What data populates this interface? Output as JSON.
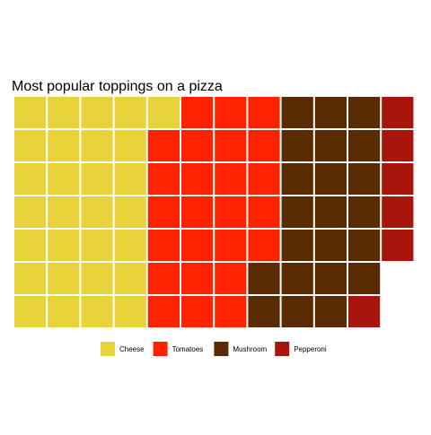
{
  "chart_data": {
    "type": "waffle",
    "title": "Most popular toppings on a pizza",
    "rows": 7,
    "fill_order": "column-major, top-to-bottom",
    "legend_position": "bottom",
    "series": [
      {
        "name": "Cheese",
        "value": 29,
        "color": "#E8D43A"
      },
      {
        "name": "Tomatoes",
        "value": 25,
        "color": "#FF2200"
      },
      {
        "name": "Mushroom",
        "value": 22,
        "color": "#5A2A00"
      },
      {
        "name": "Pepperoni",
        "value": 6,
        "color": "#A8150C"
      }
    ]
  }
}
